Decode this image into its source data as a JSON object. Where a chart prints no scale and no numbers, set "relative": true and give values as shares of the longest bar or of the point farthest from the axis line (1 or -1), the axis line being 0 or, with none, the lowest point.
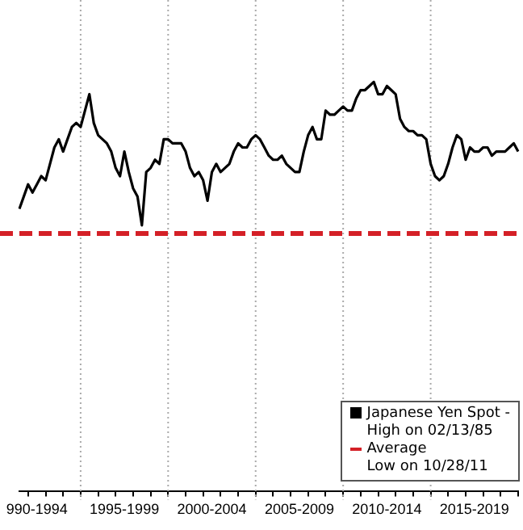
{
  "chart_data": {
    "type": "line",
    "relative": true,
    "categories": [
      null,
      null,
      null,
      null,
      "990-1994",
      null,
      null,
      null,
      null,
      null,
      null,
      null,
      null,
      null,
      null,
      null,
      null,
      null,
      null,
      null,
      null,
      null,
      null,
      null,
      "1995-1999",
      null,
      null,
      null,
      null,
      null,
      null,
      null,
      null,
      null,
      null,
      null,
      null,
      null,
      null,
      null,
      null,
      null,
      null,
      null,
      "2000-2004",
      null,
      null,
      null,
      null,
      null,
      null,
      null,
      null,
      null,
      null,
      null,
      null,
      null,
      null,
      null,
      null,
      null,
      null,
      null,
      "2005-2009",
      null,
      null,
      null,
      null,
      null,
      null,
      null,
      null,
      null,
      null,
      null,
      null,
      null,
      null,
      null,
      null,
      null,
      null,
      null,
      "2010-2014",
      null,
      null,
      null,
      null,
      null,
      null,
      null,
      null,
      null,
      null,
      null,
      null,
      null,
      null,
      null,
      null,
      null,
      null,
      null,
      "2015-2019",
      null,
      null,
      null,
      null,
      null,
      null,
      null,
      null,
      null,
      null
    ],
    "series": [
      {
        "name": "Japanese Yen Spot -",
        "color": "#000000",
        "values": [
          0.69,
          0.72,
          0.75,
          0.73,
          0.75,
          0.77,
          0.76,
          0.8,
          0.84,
          0.86,
          0.83,
          0.86,
          0.89,
          0.9,
          0.89,
          0.93,
          0.97,
          0.9,
          0.87,
          0.86,
          0.85,
          0.83,
          0.79,
          0.77,
          0.83,
          0.78,
          0.74,
          0.72,
          0.65,
          0.78,
          0.79,
          0.81,
          0.8,
          0.86,
          0.86,
          0.85,
          0.85,
          0.85,
          0.83,
          0.79,
          0.77,
          0.78,
          0.76,
          0.71,
          0.78,
          0.8,
          0.78,
          0.79,
          0.8,
          0.83,
          0.85,
          0.84,
          0.84,
          0.86,
          0.87,
          0.86,
          0.84,
          0.82,
          0.81,
          0.81,
          0.82,
          0.8,
          0.79,
          0.78,
          0.78,
          0.83,
          0.87,
          0.89,
          0.86,
          0.86,
          0.93,
          0.92,
          0.92,
          0.93,
          0.94,
          0.93,
          0.93,
          0.96,
          0.98,
          0.98,
          0.99,
          1,
          0.97,
          0.97,
          0.99,
          0.98,
          0.97,
          0.91,
          0.89,
          0.88,
          0.88,
          0.87,
          0.87,
          0.86,
          0.8,
          0.77,
          0.76,
          0.77,
          0.8,
          0.84,
          0.87,
          0.86,
          0.81,
          0.84,
          0.83,
          0.83,
          0.84,
          0.84,
          0.82,
          0.83,
          0.83,
          0.83,
          0.84,
          0.85,
          0.83
        ]
      }
    ],
    "ref_lines": [
      {
        "axis": "y",
        "value": 0.63,
        "label": "Average",
        "color": "#d42027",
        "line_style": "dashed"
      }
    ],
    "annotations": [
      "High on 02/13/85",
      "Low on 10/28/11"
    ],
    "grid": "x",
    "legend": "bottom right"
  }
}
